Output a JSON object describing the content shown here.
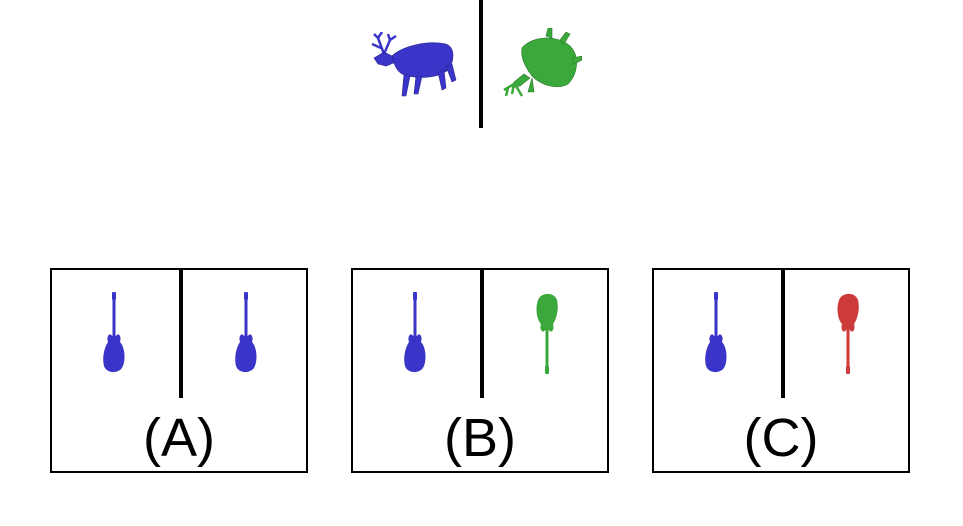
{
  "example": {
    "left_figure": {
      "icon": "deer-icon",
      "color": "#3a35c8"
    },
    "right_figure": {
      "icon": "deer-icon",
      "color": "#3aa83a"
    }
  },
  "options": [
    {
      "label": "(A)",
      "left_icon": "guitar-icon",
      "left_color": "#3a35c8",
      "right_icon": "guitar-icon",
      "right_color": "#3a35c8"
    },
    {
      "label": "(B)",
      "left_icon": "guitar-icon",
      "left_color": "#3a35c8",
      "right_icon": "guitar-icon",
      "right_color": "#3aa83a"
    },
    {
      "label": "(C)",
      "left_icon": "guitar-icon",
      "left_color": "#3a35c8",
      "right_icon": "guitar-icon",
      "right_color": "#cc3a3a"
    }
  ]
}
